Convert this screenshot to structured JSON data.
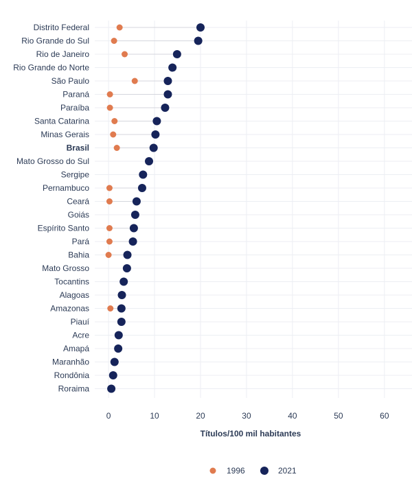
{
  "chart_data": {
    "type": "dot",
    "xlabel": "Títulos/100 mil habitantes",
    "xlim": [
      -3,
      66
    ],
    "xticks": [
      0,
      10,
      20,
      30,
      40,
      50,
      60
    ],
    "grid": true,
    "legend_position": "bottom",
    "highlight_category": "Brasil",
    "categories": [
      "Distrito Federal",
      "Rio Grande do Sul",
      "Rio de Janeiro",
      "Rio Grande do Norte",
      "São Paulo",
      "Paraná",
      "Paraíba",
      "Santa Catarina",
      "Minas Gerais",
      "Brasil",
      "Mato Grosso do Sul",
      "Sergipe",
      "Pernambuco",
      "Ceará",
      "Goiás",
      "Espírito Santo",
      "Pará",
      "Bahia",
      "Mato Grosso",
      "Tocantins",
      "Alagoas",
      "Amazonas",
      "Piauí",
      "Acre",
      "Amapá",
      "Maranhão",
      "Rondônia",
      "Roraima"
    ],
    "series": [
      {
        "name": "1996",
        "color": "#e07b4f",
        "values": [
          2.4,
          1.2,
          3.5,
          null,
          5.7,
          0.3,
          0.3,
          1.3,
          1.0,
          1.8,
          null,
          null,
          0.2,
          0.2,
          null,
          0.2,
          0.2,
          0.0,
          null,
          null,
          null,
          0.4,
          null,
          null,
          null,
          null,
          null,
          null
        ]
      },
      {
        "name": "2021",
        "color": "#16245a",
        "values": [
          20.0,
          19.5,
          14.9,
          13.9,
          12.9,
          12.9,
          12.3,
          10.5,
          10.2,
          9.8,
          8.8,
          7.5,
          7.3,
          6.1,
          5.8,
          5.5,
          5.3,
          4.1,
          4.0,
          3.3,
          2.9,
          2.8,
          2.8,
          2.2,
          2.1,
          1.3,
          1.0,
          0.6
        ]
      }
    ]
  }
}
